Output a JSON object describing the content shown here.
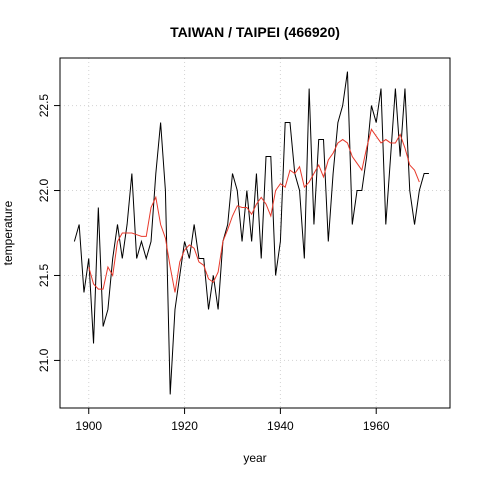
{
  "chart_data": {
    "type": "line",
    "title": "TAIWAN / TAIPEI (466920)",
    "xlabel": "year",
    "ylabel": "temperature",
    "xlim": [
      1894,
      1975.4
    ],
    "ylim": [
      20.72,
      22.78
    ],
    "xticks": [
      1900,
      1920,
      1940,
      1960
    ],
    "yticks": [
      {
        "value": 21,
        "label": "21.0"
      },
      21.5,
      {
        "value": 22,
        "label": "22.0"
      },
      22.5
    ],
    "grid": true,
    "series": [
      {
        "color": "#000000",
        "x": [
          1897,
          1898,
          1899,
          1900,
          1901,
          1902,
          1903,
          1904,
          1905,
          1906,
          1907,
          1908,
          1909,
          1910,
          1911,
          1912,
          1913,
          1914,
          1915,
          1916,
          1917,
          1918,
          1919,
          1920,
          1921,
          1922,
          1923,
          1924,
          1925,
          1926,
          1927,
          1928,
          1929,
          1930,
          1931,
          1932,
          1933,
          1934,
          1935,
          1936,
          1937,
          1938,
          1939,
          1940,
          1941,
          1942,
          1943,
          1944,
          1945,
          1946,
          1947,
          1948,
          1949,
          1950,
          1951,
          1952,
          1953,
          1954,
          1955,
          1956,
          1957,
          1958,
          1959,
          1960,
          1961,
          1962,
          1963,
          1964,
          1965,
          1966,
          1967,
          1968,
          1969,
          1970,
          1971
        ],
        "values": [
          21.7,
          21.8,
          21.4,
          21.6,
          21.1,
          21.9,
          21.2,
          21.3,
          21.6,
          21.8,
          21.6,
          21.8,
          22.1,
          21.6,
          21.7,
          21.6,
          21.7,
          22.1,
          22.4,
          22.0,
          20.8,
          21.3,
          21.5,
          21.7,
          21.6,
          21.8,
          21.6,
          21.6,
          21.3,
          21.5,
          21.3,
          21.7,
          21.8,
          22.1,
          22.0,
          21.7,
          22.0,
          21.7,
          22.1,
          21.6,
          22.2,
          22.2,
          21.5,
          21.7,
          22.4,
          22.4,
          22.1,
          22.0,
          21.6,
          22.6,
          21.8,
          22.3,
          22.3,
          21.7,
          22.1,
          22.4,
          22.5,
          22.7,
          21.8,
          22.0,
          22.0,
          22.2,
          22.5,
          22.4,
          22.6,
          21.8,
          22.2,
          22.6,
          22.2,
          22.6,
          22.0,
          21.8,
          22.0,
          22.1,
          22.1
        ]
      },
      {
        "color": "#e8392b",
        "x": [
          1900,
          1901,
          1902,
          1903,
          1904,
          1905,
          1906,
          1907,
          1908,
          1909,
          1910,
          1911,
          1912,
          1913,
          1914,
          1915,
          1916,
          1917,
          1918,
          1919,
          1920,
          1921,
          1922,
          1923,
          1924,
          1925,
          1926,
          1927,
          1928,
          1929,
          1930,
          1931,
          1932,
          1933,
          1934,
          1935,
          1936,
          1937,
          1938,
          1939,
          1940,
          1941,
          1942,
          1943,
          1944,
          1945,
          1946,
          1947,
          1948,
          1949,
          1950,
          1951,
          1952,
          1953,
          1954,
          1955,
          1956,
          1957,
          1958,
          1959,
          1960,
          1961,
          1962,
          1963,
          1964,
          1965,
          1966,
          1967,
          1968,
          1969
        ],
        "values": [
          21.55,
          21.45,
          21.42,
          21.42,
          21.55,
          21.5,
          21.7,
          21.75,
          21.75,
          21.75,
          21.74,
          21.73,
          21.73,
          21.9,
          21.96,
          21.8,
          21.72,
          21.55,
          21.4,
          21.58,
          21.65,
          21.68,
          21.66,
          21.58,
          21.56,
          21.48,
          21.46,
          21.52,
          21.7,
          21.77,
          21.85,
          21.91,
          21.9,
          21.9,
          21.86,
          21.92,
          21.96,
          21.92,
          21.85,
          22.0,
          22.04,
          22.02,
          22.12,
          22.1,
          22.14,
          22.02,
          22.05,
          22.1,
          22.15,
          22.08,
          22.18,
          22.22,
          22.28,
          22.3,
          22.28,
          22.2,
          22.16,
          22.12,
          22.25,
          22.36,
          22.32,
          22.28,
          22.3,
          22.28,
          22.28,
          22.33,
          22.25,
          22.15,
          22.12,
          22.05
        ]
      }
    ]
  }
}
